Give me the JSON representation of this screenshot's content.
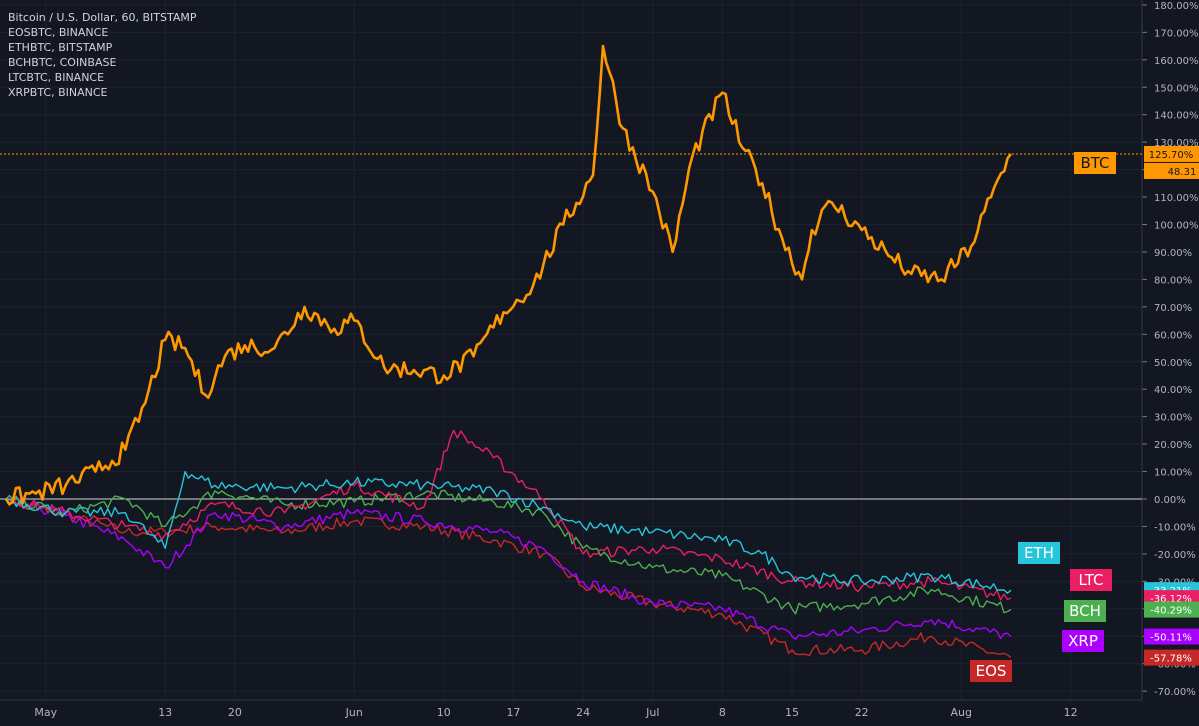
{
  "legend": [
    "Bitcoin / U.S. Dollar, 60, BITSTAMP",
    "EOSBTC, BINANCE",
    "ETHBTC, BITSTAMP",
    "BCHBTC, COINBASE",
    "LTCBTC, BINANCE",
    "XRPBTC, BINANCE"
  ],
  "chart_data": {
    "type": "line",
    "y_unit": "%",
    "ylim": [
      -72,
      180
    ],
    "y_ticks": [
      "180.00%",
      "170.00%",
      "160.00%",
      "150.00%",
      "140.00%",
      "130.00%",
      "120.00%",
      "110.00%",
      "100.00%",
      "90.00%",
      "80.00%",
      "70.00%",
      "60.00%",
      "50.00%",
      "40.00%",
      "30.00%",
      "20.00%",
      "10.00%",
      "0.00%",
      "-10.00%",
      "-20.00%",
      "-30.00%",
      "-40.00%",
      "-50.00%",
      "-60.00%",
      "-70.00%"
    ],
    "x_ticks": [
      "May",
      "13",
      "20",
      "Jun",
      "10",
      "17",
      "24",
      "Jul",
      "8",
      "15",
      "22",
      "Aug",
      "12"
    ],
    "baseline": 0,
    "price_line_value": 125.7,
    "series": [
      {
        "name": "BTC",
        "color": "#ff9800",
        "last_value_label": "125.70%",
        "sub_label": "48.31",
        "x": [
          "Apr 27",
          "Apr 30",
          "May 3",
          "May 6",
          "May 9",
          "May 11",
          "May 13",
          "May 15",
          "May 17",
          "May 19",
          "May 21",
          "May 24",
          "May 27",
          "May 30",
          "Jun 1",
          "Jun 4",
          "Jun 7",
          "Jun 10",
          "Jun 13",
          "Jun 16",
          "Jun 19",
          "Jun 22",
          "Jun 25",
          "Jun 26",
          "Jun 28",
          "Jul 1",
          "Jul 3",
          "Jul 5",
          "Jul 8",
          "Jul 10",
          "Jul 12",
          "Jul 14",
          "Jul 16",
          "Jul 17",
          "Jul 19",
          "Jul 22",
          "Jul 25",
          "Jul 27",
          "Jul 30",
          "Aug 2",
          "Aug 4",
          "Aug 6"
        ],
        "y": [
          0,
          2,
          5,
          10,
          18,
          35,
          58,
          55,
          38,
          52,
          56,
          55,
          70,
          62,
          65,
          48,
          47,
          45,
          52,
          68,
          78,
          100,
          118,
          165,
          135,
          112,
          90,
          125,
          148,
          128,
          115,
          95,
          80,
          98,
          108,
          98,
          88,
          82,
          80,
          92,
          110,
          125.7
        ]
      },
      {
        "name": "ETH",
        "color": "#26c6da",
        "last_value_label": "-33.21%",
        "x": [
          "Apr 27",
          "May 3",
          "May 9",
          "May 13",
          "May 15",
          "May 18",
          "May 25",
          "Jun 1",
          "Jun 8",
          "Jun 15",
          "Jun 20",
          "Jun 24",
          "Jul 1",
          "Jul 8",
          "Jul 12",
          "Jul 15",
          "Jul 22",
          "Jul 29",
          "Aug 6"
        ],
        "y": [
          0,
          -5,
          -5,
          -18,
          10,
          5,
          4,
          6,
          5,
          3,
          -3,
          -10,
          -12,
          -15,
          -20,
          -28,
          -30,
          -28,
          -33.21
        ]
      },
      {
        "name": "LTC",
        "color": "#e91e63",
        "last_value_label": "-36.12%",
        "x": [
          "Apr 27",
          "May 3",
          "May 9",
          "May 13",
          "May 18",
          "May 25",
          "Jun 1",
          "Jun 8",
          "Jun 11",
          "Jun 15",
          "Jun 20",
          "Jun 24",
          "Jul 1",
          "Jul 8",
          "Jul 15",
          "Jul 22",
          "Jul 29",
          "Aug 6"
        ],
        "y": [
          0,
          -5,
          -10,
          -13,
          -2,
          -5,
          5,
          -3,
          25,
          15,
          0,
          -20,
          -18,
          -22,
          -30,
          -32,
          -30,
          -36.12
        ]
      },
      {
        "name": "BCH",
        "color": "#4caf50",
        "last_value_label": "-40.29%",
        "x": [
          "Apr 27",
          "May 3",
          "May 9",
          "May 13",
          "May 18",
          "May 25",
          "Jun 1",
          "Jun 8",
          "Jun 15",
          "Jun 20",
          "Jun 24",
          "Jul 1",
          "Jul 8",
          "Jul 15",
          "Jul 22",
          "Jul 29",
          "Aug 6"
        ],
        "y": [
          0,
          -5,
          0,
          -10,
          3,
          -2,
          -1,
          2,
          -1,
          -5,
          -18,
          -25,
          -28,
          -40,
          -38,
          -33,
          -40.29
        ]
      },
      {
        "name": "XRP",
        "color": "#aa00ff",
        "last_value_label": "-50.11%",
        "x": [
          "Apr 27",
          "May 3",
          "May 9",
          "May 13",
          "May 18",
          "May 25",
          "Jun 1",
          "Jun 8",
          "Jun 15",
          "Jun 20",
          "Jun 24",
          "Jul 1",
          "Jul 8",
          "Jul 15",
          "Jul 22",
          "Jul 29",
          "Aug 6"
        ],
        "y": [
          0,
          -6,
          -15,
          -25,
          -5,
          -10,
          -5,
          -8,
          -12,
          -18,
          -30,
          -38,
          -40,
          -50,
          -48,
          -44,
          -50.11
        ]
      },
      {
        "name": "EOS",
        "color": "#c62828",
        "last_value_label": "-57.78%",
        "x": [
          "Apr 27",
          "May 3",
          "May 9",
          "May 13",
          "May 18",
          "May 25",
          "Jun 1",
          "Jun 8",
          "Jun 15",
          "Jun 20",
          "Jun 24",
          "Jul 1",
          "Jul 8",
          "Jul 15",
          "Jul 22",
          "Jul 29",
          "Aug 6"
        ],
        "y": [
          0,
          -6,
          -12,
          -12,
          -10,
          -12,
          -8,
          -10,
          -15,
          -20,
          -32,
          -38,
          -42,
          -55,
          -55,
          -50,
          -57.78
        ]
      }
    ]
  }
}
